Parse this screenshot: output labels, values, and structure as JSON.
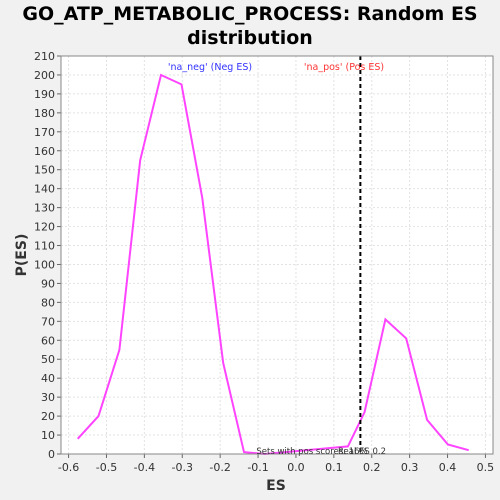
{
  "chart_data": {
    "type": "line",
    "title": "GO_ATP_METABOLIC_PROCESS: Random ES distribution",
    "xlabel": "ES",
    "ylabel": "P(ES)",
    "xlim": [
      -0.62,
      0.52
    ],
    "ylim": [
      0,
      210
    ],
    "xticks": [
      "-0.6",
      "-0.5",
      "-0.4",
      "-0.3",
      "-0.2",
      "-0.1",
      "0.0",
      "0.1",
      "0.2",
      "0.3",
      "0.4",
      "0.5"
    ],
    "yticks": [
      0,
      10,
      20,
      30,
      40,
      50,
      60,
      70,
      80,
      90,
      100,
      110,
      120,
      130,
      140,
      150,
      160,
      170,
      180,
      190,
      200,
      210
    ],
    "grid": true,
    "series": [
      {
        "color": "#ff44ff",
        "x": [
          -0.576,
          -0.521,
          -0.466,
          -0.411,
          -0.356,
          -0.302,
          -0.247,
          -0.192,
          -0.137,
          -0.082,
          0.137,
          0.181,
          0.236,
          0.291,
          0.346,
          0.401,
          0.456
        ],
        "y": [
          8,
          20,
          55,
          155,
          200,
          195,
          135,
          48,
          1,
          0,
          4,
          22,
          71,
          61,
          18,
          5,
          2
        ]
      }
    ],
    "vline": {
      "x": 0.17,
      "color": "#000000",
      "style": "dashed"
    },
    "legend": [
      {
        "label": "'na_neg' (Neg ES)",
        "color": "#3333ff"
      },
      {
        "label": "'na_pos' (Pos ES)",
        "color": "#ff3333"
      }
    ],
    "annotation": "Sets with pos scores: 16%",
    "annotation2": "Real ES 0.2"
  }
}
